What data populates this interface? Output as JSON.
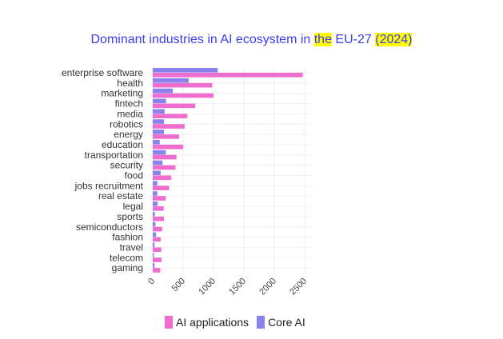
{
  "chart_data": {
    "type": "bar",
    "orientation": "horizontal",
    "title_parts": [
      "Dominant industries in AI ecosystem in ",
      "the",
      " EU-27 ",
      "(2024)"
    ],
    "categories": [
      "enterprise software",
      "health",
      "marketing",
      "fintech",
      "media",
      "robotics",
      "energy",
      "education",
      "transportation",
      "security",
      "food",
      "jobs recruitment",
      "real estate",
      "legal",
      "sports",
      "semiconductors",
      "fashion",
      "travel",
      "telecom",
      "gaming"
    ],
    "series": [
      {
        "name": "Core AI",
        "color": "#8a82ee",
        "values": [
          1070,
          590,
          330,
          220,
          195,
          185,
          185,
          115,
          215,
          160,
          130,
          75,
          75,
          80,
          35,
          45,
          55,
          30,
          20,
          30
        ]
      },
      {
        "name": "AI applications",
        "color": "#f06dd0",
        "values": [
          2470,
          980,
          1000,
          700,
          570,
          525,
          435,
          500,
          390,
          375,
          305,
          270,
          215,
          180,
          185,
          155,
          130,
          140,
          145,
          125
        ]
      }
    ],
    "xlim": [
      0,
      2600
    ],
    "xticks": [
      "0",
      "500",
      "1000",
      "1500",
      "2000",
      "2500"
    ],
    "legend_position": "bottom",
    "grid": true
  }
}
